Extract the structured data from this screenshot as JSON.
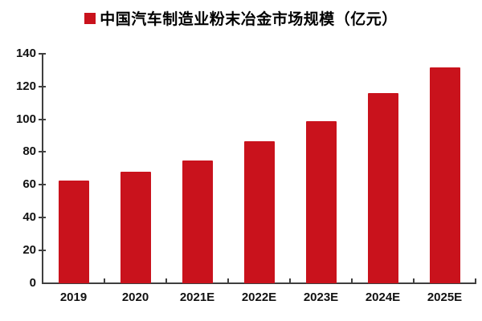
{
  "legend": {
    "label": "中国汽车制造业粉末冶金市场规模（亿元）",
    "swatch_color": "#C9121C"
  },
  "chart_data": {
    "type": "bar",
    "title": "中国汽车制造业粉末冶金市场规模（亿元）",
    "categories": [
      "2019",
      "2020",
      "2021E",
      "2022E",
      "2023E",
      "2024E",
      "2025E"
    ],
    "values": [
      63,
      68,
      75,
      87,
      99,
      116,
      132
    ],
    "xlabel": "",
    "ylabel": "",
    "ylim": [
      0,
      140
    ],
    "yticks": [
      0,
      20,
      40,
      60,
      80,
      100,
      120,
      140
    ],
    "bar_color": "#C9121C",
    "axis_color": "#3f3f3f",
    "grid": false,
    "legend_position": "top-center"
  }
}
